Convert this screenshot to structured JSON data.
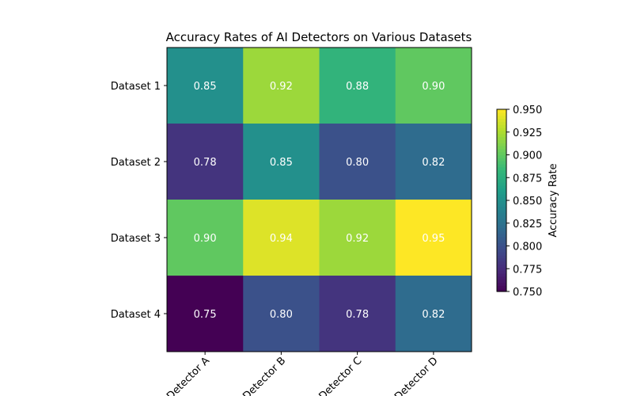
{
  "chart_data": {
    "type": "heatmap",
    "title": "Accuracy Rates of AI Detectors on Various Datasets",
    "x_categories": [
      "Detector A",
      "Detector B",
      "Detector C",
      "Detector D"
    ],
    "y_categories": [
      "Dataset 1",
      "Dataset 2",
      "Dataset 3",
      "Dataset 4"
    ],
    "values": [
      [
        0.85,
        0.92,
        0.88,
        0.9
      ],
      [
        0.78,
        0.85,
        0.8,
        0.82
      ],
      [
        0.9,
        0.94,
        0.92,
        0.95
      ],
      [
        0.75,
        0.8,
        0.78,
        0.82
      ]
    ],
    "value_labels": [
      [
        "0.85",
        "0.92",
        "0.88",
        "0.90"
      ],
      [
        "0.78",
        "0.85",
        "0.80",
        "0.82"
      ],
      [
        "0.90",
        "0.94",
        "0.92",
        "0.95"
      ],
      [
        "0.75",
        "0.80",
        "0.78",
        "0.82"
      ]
    ],
    "colormap": "viridis",
    "colorbar": {
      "label": "Accuracy Rate",
      "range": [
        0.75,
        0.95
      ],
      "ticks": [
        "0.750",
        "0.775",
        "0.800",
        "0.825",
        "0.850",
        "0.875",
        "0.900",
        "0.925",
        "0.950"
      ]
    },
    "annotation_color": "#ffffff"
  }
}
